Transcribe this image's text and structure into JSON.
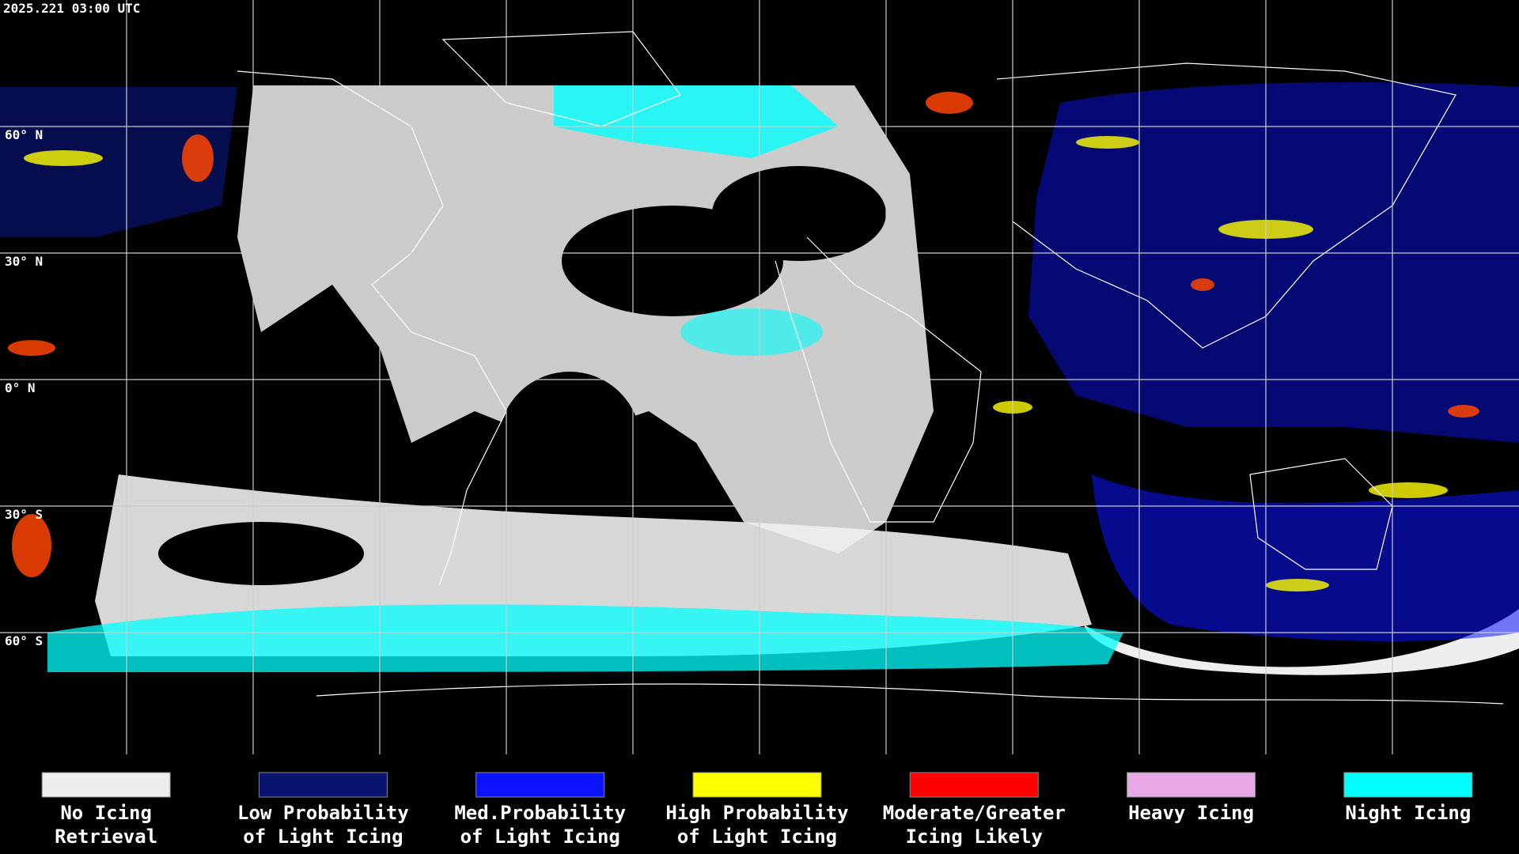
{
  "header": {
    "timestamp": "2025.221 03:00 UTC"
  },
  "map": {
    "latitude_labels": [
      "60° N",
      "30° N",
      "0° N",
      "30° S",
      "60° S"
    ]
  },
  "legend": {
    "items": [
      {
        "label_lines": [
          "No Icing",
          "Retrieval"
        ],
        "color": "#eeeeee"
      },
      {
        "label_lines": [
          "Low Probability",
          "of Light Icing"
        ],
        "color": "#0a1470"
      },
      {
        "label_lines": [
          "Med.Probability",
          "of Light Icing"
        ],
        "color": "#0a14ff"
      },
      {
        "label_lines": [
          "High Probability",
          "of Light Icing"
        ],
        "color": "#ffff00"
      },
      {
        "label_lines": [
          "Moderate/Greater",
          "Icing Likely"
        ],
        "color": "#ff0000"
      },
      {
        "label_lines": [
          "Heavy Icing"
        ],
        "color": "#e8a8e8"
      },
      {
        "label_lines": [
          "Night Icing"
        ],
        "color": "#00ffff"
      }
    ]
  }
}
